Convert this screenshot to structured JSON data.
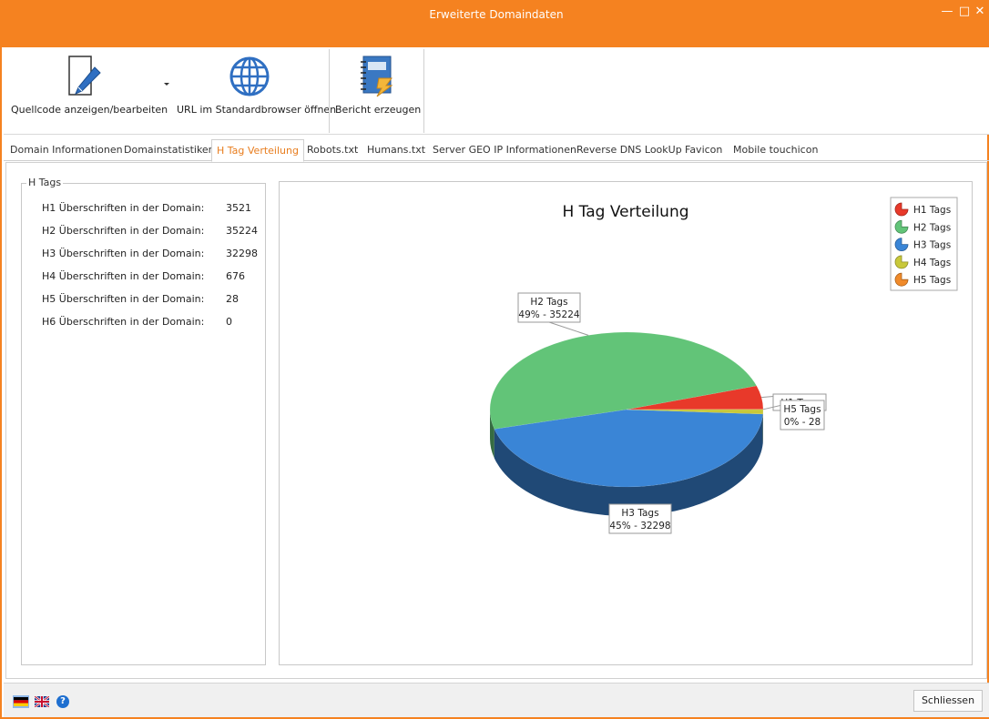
{
  "window": {
    "title": "Erweiterte Domaindaten",
    "minimize": "—",
    "maximize": "□",
    "close": "✕"
  },
  "toolbar": {
    "source_label": "Quellcode anzeigen/bearbeiten",
    "browser_label": "URL im Standardbrowser öffnen",
    "report_label": "Bericht erzeugen",
    "source_icon": "edit-document-icon",
    "browser_icon": "globe-icon",
    "report_icon": "report-notebook-icon"
  },
  "tabs": [
    {
      "label": "Domain Informationen"
    },
    {
      "label": "Domainstatistiken"
    },
    {
      "label": "H Tag Verteilung"
    },
    {
      "label": "Robots.txt"
    },
    {
      "label": "Humans.txt"
    },
    {
      "label": "Server GEO IP Informationen"
    },
    {
      "label": "Reverse DNS LookUp"
    },
    {
      "label": "Favicon"
    },
    {
      "label": "Mobile touchicon"
    }
  ],
  "active_tab": "H Tag Verteilung",
  "htags": {
    "legend": "H Tags",
    "rows": [
      {
        "label": "H1 Überschriften in der Domain:",
        "value": "3521"
      },
      {
        "label": "H2 Überschriften in der Domain:",
        "value": "35224"
      },
      {
        "label": "H3 Überschriften in der Domain:",
        "value": "32298"
      },
      {
        "label": "H4 Überschriften in der Domain:",
        "value": "676"
      },
      {
        "label": "H5 Überschriften in der Domain:",
        "value": "28"
      },
      {
        "label": "H6 Überschriften in der Domain:",
        "value": "0"
      }
    ]
  },
  "chart_data": {
    "type": "pie",
    "title": "H Tag Verteilung",
    "legend_position": "top-right",
    "categories": [
      "H1 Tags",
      "H2 Tags",
      "H3 Tags",
      "H4 Tags",
      "H5 Tags"
    ],
    "values": [
      3521,
      35224,
      32298,
      676,
      28
    ],
    "colors": [
      "#e8392a",
      "#62c478",
      "#3a85d6",
      "#c8c83a",
      "#f08a2a"
    ],
    "data_labels": [
      {
        "name": "H1 Tags",
        "text": ""
      },
      {
        "name": "H2 Tags",
        "text": "49% - 35224"
      },
      {
        "name": "H3 Tags",
        "text": "45% - 32298"
      },
      {
        "name": "H5 Tags",
        "text": "0% - 28"
      }
    ]
  },
  "status": {
    "close_label": "Schliessen",
    "flag_de": "flag-de-icon",
    "flag_en": "flag-uk-icon",
    "help": "?"
  }
}
